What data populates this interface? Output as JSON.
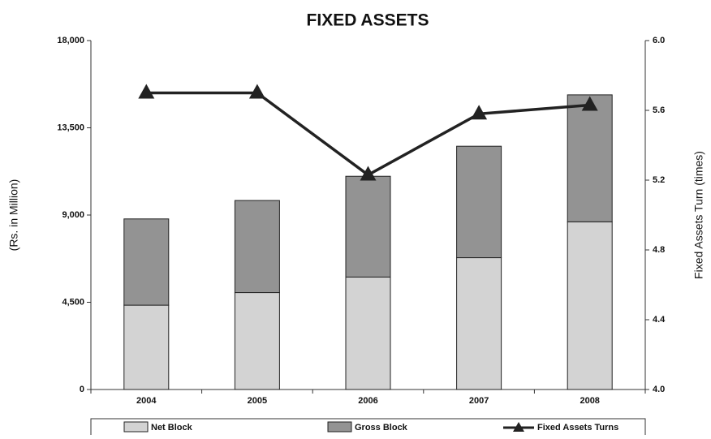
{
  "chart_data": {
    "type": "bar",
    "stacked": true,
    "title": "FIXED ASSETS",
    "ylabel": "(Rs. in Million)",
    "y2label": "Fixed Assets Turn (times)",
    "categories": [
      "2004",
      "2005",
      "2006",
      "2007",
      "2008"
    ],
    "series": [
      {
        "name": "Net Block",
        "color": "#d3d3d3",
        "values": [
          4350,
          5000,
          5800,
          6800,
          8650
        ]
      },
      {
        "name": "Gross Block",
        "color": "#939393",
        "values": [
          4450,
          4750,
          5200,
          5750,
          6550
        ]
      },
      {
        "name": "Fixed Assets Turns",
        "color": "#222222",
        "type": "line",
        "axis": "y2",
        "values": [
          5.7,
          5.7,
          5.23,
          5.58,
          5.63
        ]
      }
    ],
    "ylim": [
      0,
      18000
    ],
    "yticks": [
      0,
      {
        "value": 4500,
        "label": "4,500"
      },
      {
        "value": 9000,
        "label": "9,000"
      },
      {
        "value": 13500,
        "label": "13,500"
      },
      {
        "value": 18000,
        "label": "18,000"
      }
    ],
    "y2lim": [
      4,
      6
    ],
    "y2ticks": [
      {
        "value": 4,
        "label": "4.0"
      },
      4.4,
      4.8,
      5.2,
      5.6,
      {
        "value": 6,
        "label": "6.0"
      }
    ],
    "legend": "bottom"
  }
}
